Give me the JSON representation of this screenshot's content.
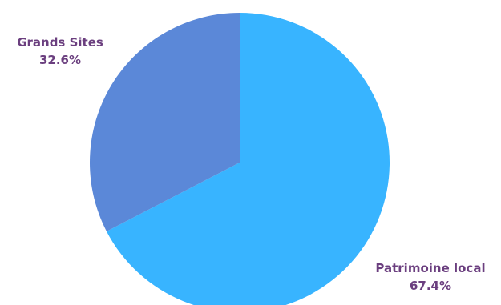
{
  "chart_data": {
    "type": "pie",
    "slices": [
      {
        "label": "Patrimoine local",
        "value": 67.4,
        "value_label": "67.4%",
        "color": "#38B4FF"
      },
      {
        "label": "Grands Sites",
        "value": 32.6,
        "value_label": "32.6%",
        "color": "#5B88D8"
      }
    ],
    "start_angle": "12 o'clock",
    "direction": "clockwise",
    "legend": "none",
    "label_color": "#6B3F7F"
  }
}
